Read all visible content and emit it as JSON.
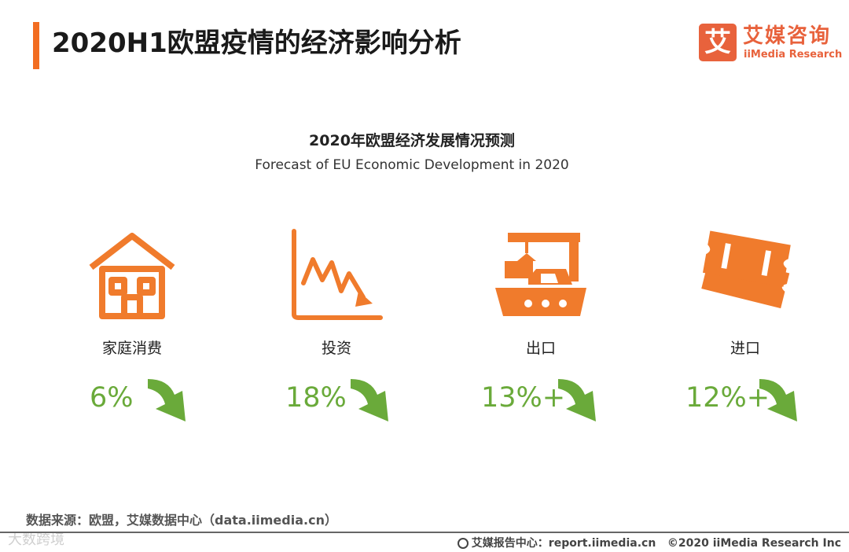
{
  "header": {
    "title": "2020H1欧盟疫情的经济影响分析",
    "accent_color": "#f26d21"
  },
  "logo": {
    "mark": "艾",
    "name_cn": "艾媒咨询",
    "name_en": "iiMedia Research",
    "color": "#e8623c"
  },
  "chart_data": {
    "type": "table",
    "title": "2020年欧盟经济发展情况预测",
    "subtitle": "Forecast of EU Economic Development in 2020",
    "categories": [
      "家庭消费",
      "投资",
      "出口",
      "进口"
    ],
    "display_values": [
      "6%",
      "18%",
      "13%+",
      "12%+"
    ],
    "values": [
      6,
      18,
      13,
      12
    ],
    "direction": "down",
    "icons": [
      "house-icon",
      "declining-chart-icon",
      "cargo-ship-crane-icon",
      "tickets-icon"
    ],
    "icon_color": "#f07b2c",
    "value_color": "#6aaa3a"
  },
  "footer": {
    "source": "数据来源：欧盟，艾媒数据中心（data.iimedia.cn）",
    "watermark": "大数跨境",
    "report_center": "艾媒报告中心：report.iimedia.cn",
    "copyright": "©2020  iiMedia Research  Inc"
  }
}
